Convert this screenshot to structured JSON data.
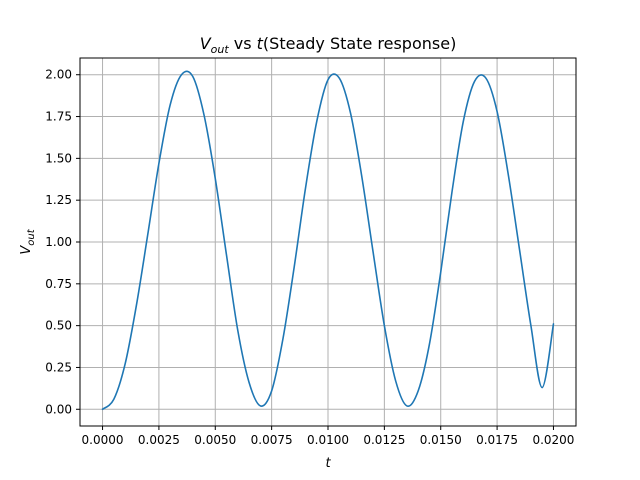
{
  "chart_data": {
    "type": "line",
    "title": {
      "main": "V",
      "main_sub": "out",
      "main_rest": " vs ",
      "var": "t",
      "suffix": "(Steady State response)"
    },
    "xlabel": "t",
    "ylabel": {
      "main": "V",
      "sub": "out"
    },
    "xlim": [
      -0.001,
      0.021
    ],
    "ylim": [
      -0.1,
      2.1
    ],
    "x_ticks": [
      0.0,
      0.0025,
      0.005,
      0.0075,
      0.01,
      0.0125,
      0.015,
      0.0175,
      0.02
    ],
    "x_tick_labels": [
      "0.0000",
      "0.0025",
      "0.0050",
      "0.0075",
      "0.0100",
      "0.0125",
      "0.0150",
      "0.0175",
      "0.0200"
    ],
    "y_ticks": [
      0.0,
      0.25,
      0.5,
      0.75,
      1.0,
      1.25,
      1.5,
      1.75,
      2.0
    ],
    "y_tick_labels": [
      "0.00",
      "0.25",
      "0.50",
      "0.75",
      "1.00",
      "1.25",
      "1.50",
      "1.75",
      "2.00"
    ],
    "grid": true,
    "series": [
      {
        "color": "#1f77b4",
        "x": [
          0.0,
          0.0005,
          0.001,
          0.0015,
          0.002,
          0.0025,
          0.003,
          0.0035,
          0.004,
          0.0045,
          0.005,
          0.0055,
          0.006,
          0.0065,
          0.007,
          0.0075,
          0.008,
          0.0085,
          0.009,
          0.0095,
          0.01,
          0.0105,
          0.011,
          0.0115,
          0.012,
          0.0125,
          0.013,
          0.0135,
          0.014,
          0.0145,
          0.015,
          0.0155,
          0.016,
          0.0165,
          0.017,
          0.0175,
          0.018,
          0.0185,
          0.019,
          0.0195,
          0.02
        ],
        "y": [
          0.0,
          0.06,
          0.27,
          0.62,
          1.04,
          1.47,
          1.82,
          2.0,
          1.99,
          1.76,
          1.38,
          0.92,
          0.47,
          0.16,
          0.02,
          0.11,
          0.42,
          0.85,
          1.32,
          1.72,
          1.97,
          1.98,
          1.77,
          1.39,
          0.94,
          0.5,
          0.17,
          0.02,
          0.11,
          0.39,
          0.82,
          1.3,
          1.72,
          1.96,
          1.98,
          1.78,
          1.4,
          0.95,
          0.5,
          0.13,
          0.51
        ]
      }
    ]
  }
}
